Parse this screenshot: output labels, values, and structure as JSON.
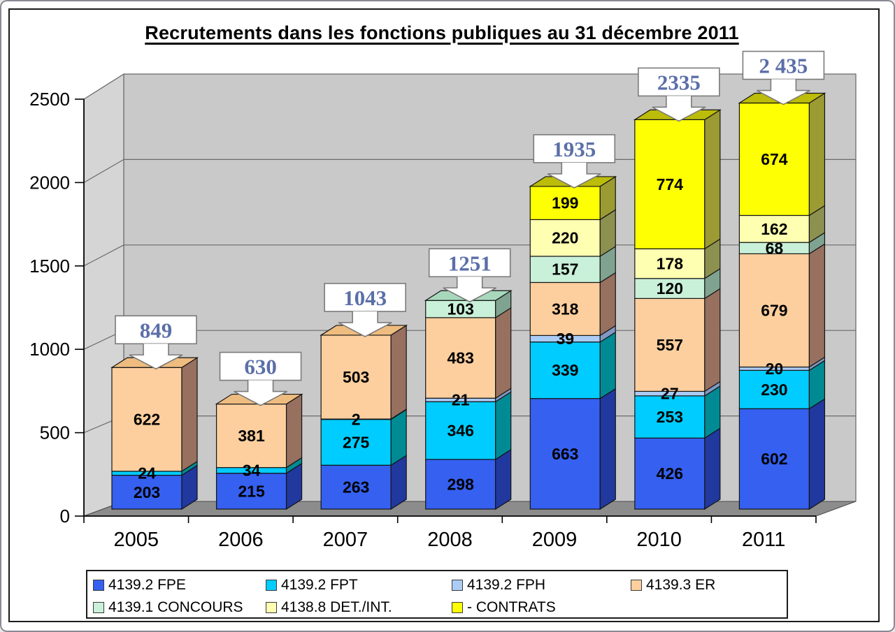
{
  "title": "Recrutements dans les fonctions publiques au 31 décembre 2011",
  "chart_data": {
    "type": "bar",
    "variant": "stacked-3d",
    "title": "Recrutements dans les fonctions publiques au 31 décembre 2011",
    "categories": [
      "2005",
      "2006",
      "2007",
      "2008",
      "2009",
      "2010",
      "2011"
    ],
    "series": [
      {
        "name": "4139.2 FPE",
        "color": "#3560F0",
        "side": "#21389F",
        "top": "#4a6ae8",
        "values": [
          203,
          215,
          263,
          298,
          663,
          426,
          602
        ]
      },
      {
        "name": "4139.2 FPT",
        "color": "#00CCFF",
        "side": "#008B94",
        "top": "#33d6ff",
        "values": [
          24,
          34,
          275,
          346,
          339,
          253,
          230
        ]
      },
      {
        "name": "4139.2 FPH",
        "color": "#AACCF5",
        "side": "#8098C4",
        "top": "#bcd6f8",
        "values": [
          0,
          0,
          2,
          21,
          39,
          27,
          20
        ]
      },
      {
        "name": "4139.3 ER",
        "color": "#FDCF9E",
        "side": "#97705F",
        "top": "#EFBC80",
        "values": [
          622,
          381,
          503,
          483,
          318,
          557,
          679
        ]
      },
      {
        "name": "4139.1 CONCOURS",
        "color": "#C9F0D8",
        "side": "#7FA390",
        "top": "#A8D8BC",
        "values": [
          0,
          0,
          0,
          103,
          157,
          120,
          68
        ]
      },
      {
        "name": "4138.8 DET./INT.",
        "color": "#FFFFB2",
        "side": "#8D9150",
        "top": "#DADA85",
        "values": [
          0,
          0,
          0,
          0,
          220,
          178,
          162
        ]
      },
      {
        "name": "- CONTRATS",
        "color": "#FFFF04",
        "side": "#9C9B33",
        "top": "#BCBC0A",
        "values": [
          0,
          0,
          0,
          0,
          199,
          774,
          674
        ]
      }
    ],
    "totals_labels": [
      "849",
      "630",
      "1043",
      "1251",
      "1935",
      "2335",
      "2 435"
    ],
    "y_axis": {
      "min": 0,
      "max": 2500,
      "step": 500,
      "ticks": [
        "0",
        "500",
        "1000",
        "1500",
        "2000",
        "2500"
      ]
    },
    "grid": true,
    "legend_position": "bottom"
  },
  "colors": {
    "back_wall": "#C9C9C9",
    "left_wall": "#D5D5D5",
    "floor": "#8C8C8C",
    "gridline": "#6b6b6b",
    "wall_edge": "#4a4a4a",
    "axis": "#000000",
    "segment_outline": "#141414",
    "label_text": "#000000",
    "callout_text": "#5B6FA8",
    "callout_border": "#7a7a7a",
    "callout_bg": "#FFFFFF"
  }
}
